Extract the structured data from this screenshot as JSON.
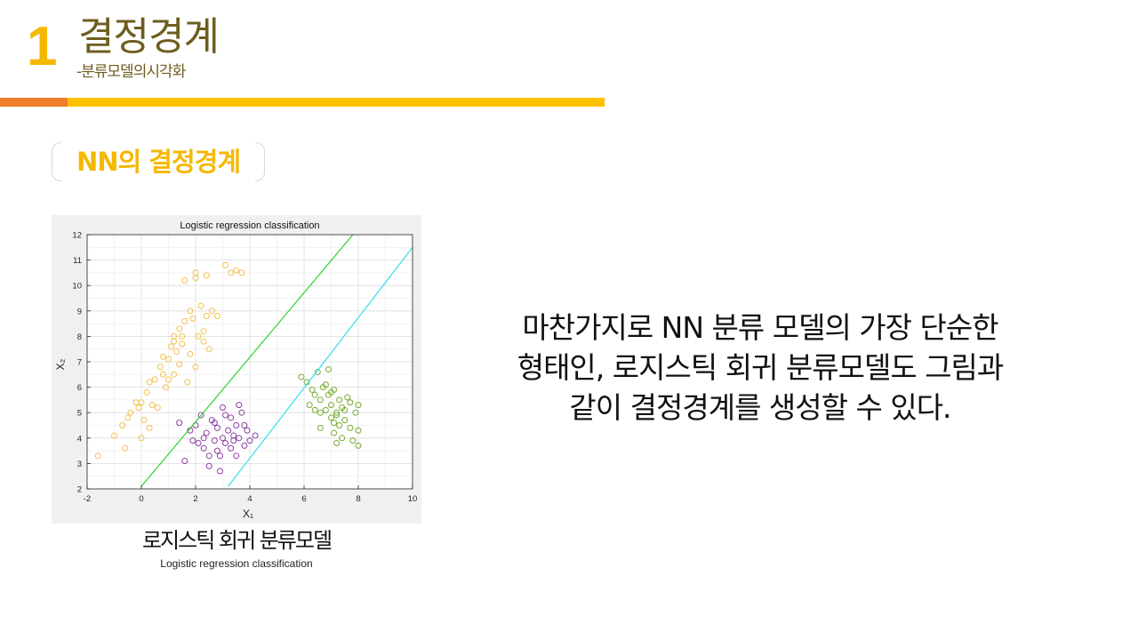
{
  "header": {
    "number": "1",
    "title": "결정경계",
    "subtitle": "-분류모델의시각화"
  },
  "section_label": "NN의 결정경계",
  "figure": {
    "caption": "로지스틱 회귀 분류모델",
    "caption_en": "Logistic  regression classification"
  },
  "body_lines": [
    "마찬가지로 NN 분류 모델의 가장 단순한",
    "형태인, 로지스틱 회귀 분류모델도 그림과",
    "같이 결정경계를 생성할 수 있다."
  ],
  "colors": {
    "accent_yellow": "#ffc000",
    "accent_orange": "#ef7d2a",
    "title_brown": "#6e5d1e",
    "class_yellow": "#f2c14e",
    "class_purple": "#8b3fa0",
    "class_green": "#77ac30",
    "boundary_green": "#2fd12f",
    "boundary_cyan": "#2fe0f0"
  },
  "chart_data": {
    "type": "scatter",
    "title": "Logistic regression classification",
    "xlabel": "X₁",
    "ylabel": "X₂",
    "xlim": [
      -2,
      10
    ],
    "ylim": [
      2,
      12
    ],
    "x_ticks": [
      "-2",
      "0",
      "2",
      "4",
      "6",
      "8",
      "10"
    ],
    "y_ticks": [
      "2",
      "3",
      "4",
      "5",
      "6",
      "7",
      "8",
      "9",
      "10",
      "11",
      "12"
    ],
    "grid": true,
    "lines": [
      {
        "name": "",
        "color": "#2fd12f",
        "points": [
          [
            0,
            2.1
          ],
          [
            7.8,
            12
          ]
        ]
      },
      {
        "name": "",
        "color": "#2fe0f0",
        "points": [
          [
            3.2,
            2.1
          ],
          [
            10,
            11.5
          ]
        ]
      }
    ],
    "series": [
      {
        "color": "#f2c14e",
        "points": [
          [
            -1.6,
            3.3
          ],
          [
            -1,
            4.1
          ],
          [
            -0.7,
            4.5
          ],
          [
            -0.6,
            3.6
          ],
          [
            -0.5,
            4.8
          ],
          [
            -0.4,
            5.0
          ],
          [
            -0.2,
            5.4
          ],
          [
            -0.1,
            5.2
          ],
          [
            0,
            4.0
          ],
          [
            0,
            5.4
          ],
          [
            0.1,
            4.7
          ],
          [
            0.2,
            5.8
          ],
          [
            0.3,
            6.2
          ],
          [
            0.3,
            4.4
          ],
          [
            0.4,
            5.3
          ],
          [
            0.5,
            6.3
          ],
          [
            0.6,
            5.2
          ],
          [
            0.7,
            6.8
          ],
          [
            0.8,
            6.5
          ],
          [
            0.9,
            6.0
          ],
          [
            1,
            6.3
          ],
          [
            1,
            7.1
          ],
          [
            1.1,
            7.6
          ],
          [
            1.2,
            6.5
          ],
          [
            1.2,
            8.0
          ],
          [
            1.3,
            7.4
          ],
          [
            1.4,
            6.9
          ],
          [
            1.5,
            8.0
          ],
          [
            1.5,
            7.7
          ],
          [
            1.6,
            8.6
          ],
          [
            1.7,
            6.2
          ],
          [
            1.8,
            7.3
          ],
          [
            1.8,
            9.0
          ],
          [
            1.9,
            8.7
          ],
          [
            2,
            6.8
          ],
          [
            2,
            10.3
          ],
          [
            2.1,
            8.0
          ],
          [
            2.2,
            9.2
          ],
          [
            2.3,
            7.8
          ],
          [
            2.4,
            8.8
          ],
          [
            2.5,
            7.5
          ],
          [
            2.6,
            9.0
          ],
          [
            2.8,
            8.8
          ],
          [
            1.6,
            10.2
          ],
          [
            2,
            10.5
          ],
          [
            2.4,
            10.4
          ],
          [
            3.1,
            10.8
          ],
          [
            3.3,
            10.5
          ],
          [
            3.5,
            10.6
          ],
          [
            3.7,
            10.5
          ],
          [
            1.2,
            7.8
          ],
          [
            0.8,
            7.2
          ],
          [
            1.4,
            8.3
          ],
          [
            2.3,
            8.2
          ]
        ]
      },
      {
        "color": "#8b3fa0",
        "points": [
          [
            1.4,
            4.6
          ],
          [
            1.6,
            3.1
          ],
          [
            1.8,
            4.3
          ],
          [
            1.9,
            3.9
          ],
          [
            2,
            4.5
          ],
          [
            2.1,
            3.8
          ],
          [
            2.2,
            4.9
          ],
          [
            2.3,
            3.6
          ],
          [
            2.4,
            4.2
          ],
          [
            2.5,
            3.3
          ],
          [
            2.6,
            4.7
          ],
          [
            2.7,
            3.9
          ],
          [
            2.8,
            3.5
          ],
          [
            2.8,
            4.4
          ],
          [
            2.9,
            2.7
          ],
          [
            3,
            4.0
          ],
          [
            3,
            5.2
          ],
          [
            3.1,
            3.8
          ],
          [
            3.2,
            4.3
          ],
          [
            3.3,
            3.6
          ],
          [
            3.3,
            4.8
          ],
          [
            3.4,
            4.1
          ],
          [
            3.5,
            3.3
          ],
          [
            3.5,
            4.5
          ],
          [
            3.6,
            4.0
          ],
          [
            3.7,
            5.0
          ],
          [
            3.8,
            3.7
          ],
          [
            3.9,
            4.3
          ],
          [
            4,
            3.9
          ],
          [
            4.2,
            4.1
          ],
          [
            2.5,
            2.9
          ],
          [
            3.6,
            5.3
          ],
          [
            2.7,
            4.6
          ],
          [
            3.1,
            4.9
          ],
          [
            2.3,
            4.0
          ],
          [
            3.4,
            3.9
          ],
          [
            2.9,
            3.3
          ],
          [
            3.8,
            4.5
          ]
        ]
      },
      {
        "color": "#77ac30",
        "points": [
          [
            5.9,
            6.4
          ],
          [
            6.1,
            6.2
          ],
          [
            6.2,
            5.3
          ],
          [
            6.3,
            5.9
          ],
          [
            6.4,
            5.1
          ],
          [
            6.5,
            6.6
          ],
          [
            6.6,
            5.5
          ],
          [
            6.6,
            4.4
          ],
          [
            6.7,
            6.0
          ],
          [
            6.8,
            5.1
          ],
          [
            6.9,
            5.7
          ],
          [
            6.9,
            6.7
          ],
          [
            7,
            4.8
          ],
          [
            7,
            5.3
          ],
          [
            7.1,
            4.2
          ],
          [
            7.1,
            5.9
          ],
          [
            7.2,
            5.0
          ],
          [
            7.2,
            3.8
          ],
          [
            7.3,
            5.5
          ],
          [
            7.3,
            4.5
          ],
          [
            7.4,
            4.0
          ],
          [
            7.4,
            5.2
          ],
          [
            7.5,
            4.7
          ],
          [
            7.6,
            5.6
          ],
          [
            7.7,
            4.4
          ],
          [
            7.8,
            3.9
          ],
          [
            7.9,
            5.0
          ],
          [
            8,
            4.3
          ],
          [
            8,
            3.7
          ],
          [
            8,
            5.3
          ],
          [
            6.8,
            6.1
          ],
          [
            7.0,
            5.8
          ],
          [
            7.5,
            5.1
          ],
          [
            7.2,
            4.9
          ],
          [
            6.6,
            5.0
          ],
          [
            7.7,
            5.4
          ],
          [
            7.1,
            4.6
          ],
          [
            6.4,
            5.7
          ]
        ]
      }
    ]
  }
}
